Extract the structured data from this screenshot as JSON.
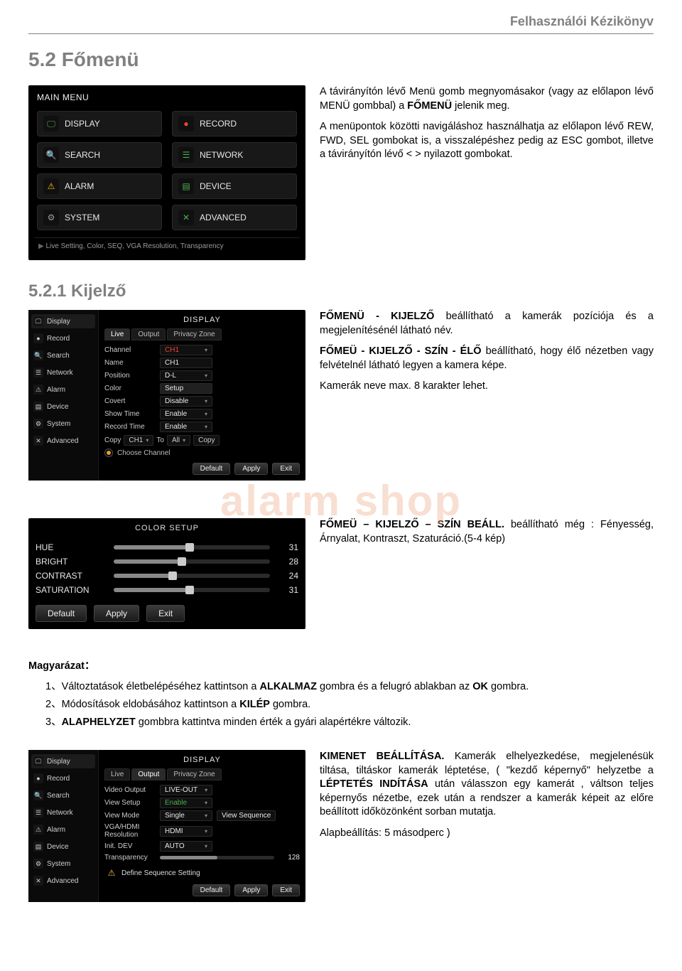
{
  "doc_header": "Felhasználói Kézikönyv",
  "section_title": "5.2 Főmenü",
  "subsection_title": "5.2.1 Kijelző",
  "watermark": "alarm shop",
  "intro": {
    "p1_part1": "A távirányítón lévő Menü gomb megnyomásakor (vagy az előlapon lévő MENÜ gombbal) a ",
    "p1_bold": "FŐMENÜ",
    "p1_part2": " jelenik meg.",
    "p2": "A menüpontok közötti navigáláshoz használhatja az előlapon lévő REW, FWD, SEL gombokat is, a visszalépéshez pedig az ESC gombot, illetve a távirányítón lévő < > nyilazott gombokat."
  },
  "mainmenu": {
    "title": "MAIN MENU",
    "items": [
      {
        "icon": "🖵",
        "color": "#4caf50",
        "label": "DISPLAY"
      },
      {
        "icon": "●",
        "color": "#f44336",
        "label": "RECORD"
      },
      {
        "icon": "🔍",
        "color": "#4caf50",
        "label": "SEARCH"
      },
      {
        "icon": "☰",
        "color": "#4caf50",
        "label": "NETWORK"
      },
      {
        "icon": "⚠",
        "color": "#ffc107",
        "label": "ALARM"
      },
      {
        "icon": "▤",
        "color": "#4caf50",
        "label": "DEVICE"
      },
      {
        "icon": "⚙",
        "color": "#9e9e9e",
        "label": "SYSTEM"
      },
      {
        "icon": "✕",
        "color": "#4caf50",
        "label": "ADVANCED"
      }
    ],
    "footer": "Live Setting, Color, SEQ, VGA Resolution, Transparency"
  },
  "kijelzo_text": {
    "p1_b": "FŐMENÜ - KIJELZŐ",
    "p1_rest": " beállítható a kamerák pozíciója és a megjelenítésénél látható név.",
    "p2_b": "FŐMEÜ - KIJELZŐ - SZÍN - ÉLŐ",
    "p2_rest": " beállítható, hogy élő nézetben vagy felvételnél látható legyen a kamera képe.",
    "p3": "Kamerák neve max. 8 karakter lehet."
  },
  "display_panel": {
    "title": "DISPLAY",
    "sidebar": [
      {
        "icon": "🖵",
        "label": "Display",
        "active": true
      },
      {
        "icon": "●",
        "label": "Record"
      },
      {
        "icon": "🔍",
        "label": "Search"
      },
      {
        "icon": "☰",
        "label": "Network"
      },
      {
        "icon": "⚠",
        "label": "Alarm"
      },
      {
        "icon": "▤",
        "label": "Device"
      },
      {
        "icon": "⚙",
        "label": "System"
      },
      {
        "icon": "✕",
        "label": "Advanced"
      }
    ],
    "tabs": [
      {
        "label": "Live",
        "active": true
      },
      {
        "label": "Output"
      },
      {
        "label": "Privacy Zone"
      }
    ],
    "rows": [
      {
        "label": "Channel",
        "value": "CH1",
        "color": "#f44336",
        "dd": true
      },
      {
        "label": "Name",
        "value": "CH1"
      },
      {
        "label": "Position",
        "value": "D-L",
        "dd": true
      },
      {
        "label": "Color",
        "value": "Setup",
        "setup": true
      },
      {
        "label": "Covert",
        "value": "Disable",
        "dd": true
      },
      {
        "label": "Show Time",
        "value": "Enable",
        "dd": true
      },
      {
        "label": "Record Time",
        "value": "Enable",
        "dd": true
      }
    ],
    "copy": {
      "label": "Copy",
      "from": "CH1",
      "to_lbl": "To",
      "to_val": "All",
      "btn": "Copy"
    },
    "radio": "Choose Channel",
    "buttons": [
      "Default",
      "Apply",
      "Exit"
    ]
  },
  "color_setup": {
    "title": "COLOR SETUP",
    "sliders": [
      {
        "label": "HUE",
        "value": 31,
        "max": 64
      },
      {
        "label": "BRIGHT",
        "value": 28,
        "max": 64
      },
      {
        "label": "CONTRAST",
        "value": 24,
        "max": 64
      },
      {
        "label": "SATURATION",
        "value": 31,
        "max": 64
      }
    ],
    "buttons": [
      "Default",
      "Apply",
      "Exit"
    ]
  },
  "color_text": {
    "b": "FŐMEÜ – KIJELZŐ – SZÍN BEÁLL.",
    "rest": " beállítható még : Fényesség, Árnyalat, Kontraszt, Szaturáció.(5-4 kép)"
  },
  "explain": {
    "head": "Magyarázat：",
    "items": [
      {
        "pre": "1、Változtatások életbelépéséhez kattintson a ",
        "b1": "ALKALMAZ",
        "mid": " gombra és a felugró ablakban az ",
        "b2": "OK",
        "post": " gombra."
      },
      {
        "pre": "2、Módosítások eldobásához kattintson a ",
        "b1": "KILÉP",
        "mid": "  gombra.",
        "b2": "",
        "post": ""
      },
      {
        "pre": "3、",
        "b1": "ALAPHELYZET",
        "mid": " gombbra kattintva minden érték a gyári alapértékre változik.",
        "b2": "",
        "post": ""
      }
    ]
  },
  "output_panel": {
    "title": "DISPLAY",
    "sidebar": [
      {
        "icon": "🖵",
        "label": "Display",
        "active": true
      },
      {
        "icon": "●",
        "label": "Record"
      },
      {
        "icon": "🔍",
        "label": "Search"
      },
      {
        "icon": "☰",
        "label": "Network"
      },
      {
        "icon": "⚠",
        "label": "Alarm"
      },
      {
        "icon": "▤",
        "label": "Device"
      },
      {
        "icon": "⚙",
        "label": "System"
      },
      {
        "icon": "✕",
        "label": "Advanced"
      }
    ],
    "tabs": [
      {
        "label": "Live"
      },
      {
        "label": "Output",
        "active": true
      },
      {
        "label": "Privacy Zone"
      }
    ],
    "rows": [
      {
        "label": "Video Output",
        "value": "LIVE-OUT",
        "dd": true
      },
      {
        "label": "View Setup",
        "value": "Enable",
        "dd": true,
        "color": "#4caf50"
      },
      {
        "label": "View Mode",
        "value": "Single",
        "dd": true,
        "extra": "View Sequence"
      },
      {
        "label": "VGA/HDMI Resolution",
        "value": "HDMI",
        "dd": true
      },
      {
        "label": "Init. DEV",
        "value": "AUTO",
        "dd": true
      },
      {
        "label": "Transparency",
        "slider": 128,
        "max": 255
      }
    ],
    "define": {
      "icon": "⚠",
      "text": "Define Sequence Setting"
    },
    "buttons": [
      "Default",
      "Apply",
      "Exit"
    ]
  },
  "kimenet_text": {
    "b1": "KIMENET BEÁLLÍTÁSA.",
    "t1": " Kamerák elhelyezkedése, megjelenésük tiltása, tiltáskor kamerák léptetése, ( \"kezdő képernyő\" helyzetbe a ",
    "b2": "LÉPTETÉS INDÍTÁSA",
    "t2": " után válasszon egy kamerát , váltson teljes képernyős nézetbe, ezek után a rendszer a kamerák képeit az előre beállított időközönként sorban mutatja.",
    "t3": "Alapbeállítás:  5 másodperc )"
  },
  "icon_colors": {
    "display": "#4caf50",
    "record": "#f44336",
    "search": "#4caf50",
    "network": "#4caf50",
    "alarm": "#ffc107",
    "device": "#4caf50",
    "system": "#9e9e9e",
    "advanced": "#4caf50"
  }
}
